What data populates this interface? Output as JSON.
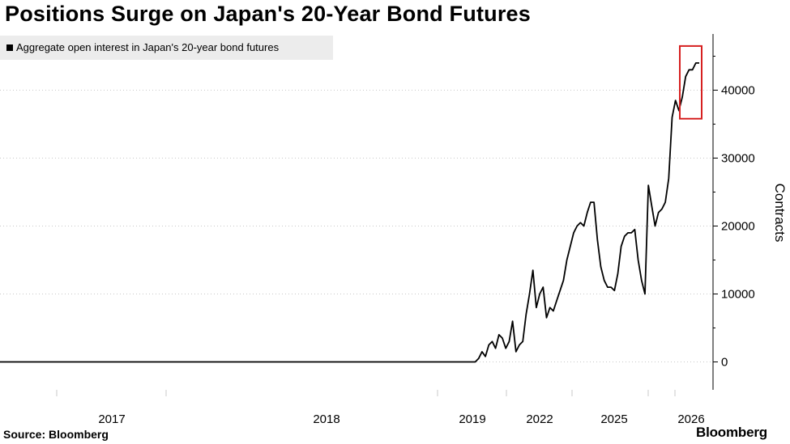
{
  "header": {
    "title": "Positions Surge on Japan's 20-Year Bond Futures"
  },
  "legend": {
    "label": "Aggregate open interest in Japan's 20-year bond futures"
  },
  "footer": {
    "source": "Source: Bloomberg",
    "brand": "Bloomberg"
  },
  "colors": {
    "line": "#000000",
    "highlight_box": "#d62020",
    "axis": "#000000",
    "grid": "#c8c8c8"
  },
  "chart_data": {
    "type": "line",
    "title": "Positions Surge on Japan's 20-Year Bond Futures",
    "xlabel": "",
    "ylabel": "Contracts",
    "ylim": [
      -4000,
      48000
    ],
    "yticks": [
      0,
      10000,
      20000,
      30000,
      40000
    ],
    "ytick_labels": [
      "0",
      "10000",
      "20000",
      "30000",
      "40000"
    ],
    "xticks": [
      "2017",
      "2018",
      "2019",
      "2022",
      "2025",
      "2026"
    ],
    "grid": "horizontal dotted",
    "legend_position": "top-left",
    "y_axis_side": "right",
    "highlight": "red box around the latest values (about 36000 to 46500 contracts)",
    "series": [
      {
        "name": "Aggregate open interest in Japan's 20-year bond futures",
        "points": [
          [
            0,
            0
          ],
          [
            0.7,
            0
          ],
          [
            0.705,
            500
          ],
          [
            0.71,
            1500
          ],
          [
            0.715,
            800
          ],
          [
            0.72,
            2500
          ],
          [
            0.725,
            3000
          ],
          [
            0.73,
            2000
          ],
          [
            0.735,
            4000
          ],
          [
            0.74,
            3500
          ],
          [
            0.745,
            2000
          ],
          [
            0.75,
            3000
          ],
          [
            0.755,
            6000
          ],
          [
            0.76,
            1500
          ],
          [
            0.765,
            2500
          ],
          [
            0.77,
            3000
          ],
          [
            0.775,
            7000
          ],
          [
            0.78,
            10000
          ],
          [
            0.785,
            13500
          ],
          [
            0.79,
            8000
          ],
          [
            0.795,
            10000
          ],
          [
            0.8,
            11000
          ],
          [
            0.805,
            6500
          ],
          [
            0.81,
            8000
          ],
          [
            0.815,
            7500
          ],
          [
            0.82,
            9000
          ],
          [
            0.825,
            10500
          ],
          [
            0.83,
            12000
          ],
          [
            0.835,
            15000
          ],
          [
            0.84,
            17000
          ],
          [
            0.845,
            19000
          ],
          [
            0.85,
            20000
          ],
          [
            0.855,
            20500
          ],
          [
            0.86,
            20000
          ],
          [
            0.865,
            22000
          ],
          [
            0.87,
            23500
          ],
          [
            0.875,
            23500
          ],
          [
            0.88,
            18000
          ],
          [
            0.885,
            14000
          ],
          [
            0.89,
            12000
          ],
          [
            0.895,
            11000
          ],
          [
            0.9,
            11000
          ],
          [
            0.905,
            10500
          ],
          [
            0.91,
            13000
          ],
          [
            0.915,
            17000
          ],
          [
            0.92,
            18500
          ],
          [
            0.925,
            19000
          ],
          [
            0.93,
            19000
          ],
          [
            0.935,
            19500
          ],
          [
            0.94,
            15000
          ],
          [
            0.945,
            12000
          ],
          [
            0.95,
            10000
          ],
          [
            0.955,
            26000
          ],
          [
            0.96,
            23000
          ],
          [
            0.965,
            20000
          ],
          [
            0.97,
            22000
          ],
          [
            0.975,
            22500
          ],
          [
            0.98,
            23500
          ],
          [
            0.985,
            27000
          ],
          [
            0.99,
            36000
          ],
          [
            0.995,
            38500
          ],
          [
            1.0,
            37000
          ],
          [
            1.005,
            39000
          ],
          [
            1.01,
            42000
          ],
          [
            1.015,
            43000
          ],
          [
            1.02,
            43000
          ],
          [
            1.025,
            44000
          ],
          [
            1.03,
            44000
          ]
        ]
      }
    ]
  }
}
